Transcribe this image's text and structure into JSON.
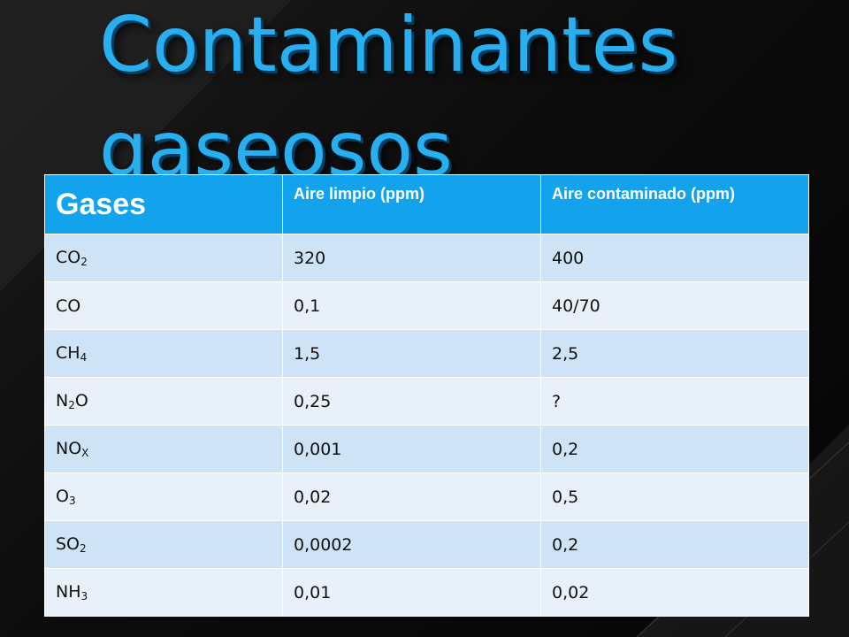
{
  "slide": {
    "title_line1": "Contaminantes",
    "title_line2": "gaseosos",
    "colors": {
      "title": "#29aff0",
      "header": "#13a2ec",
      "row_odd": "#cfe3f6",
      "row_even": "#e8f1fa"
    }
  },
  "table": {
    "headers": [
      "Gases",
      "Aire limpio (ppm)",
      "Aire contaminado (ppm)"
    ],
    "rows": [
      {
        "gas": "CO",
        "sub": "2",
        "tail": "",
        "clean": "320",
        "polluted": "400"
      },
      {
        "gas": "CO",
        "sub": "",
        "tail": "",
        "clean": "0,1",
        "polluted": "40/70"
      },
      {
        "gas": "CH",
        "sub": "4",
        "tail": "",
        "clean": "1,5",
        "polluted": "2,5"
      },
      {
        "gas": "N",
        "sub": "2",
        "tail": "O",
        "clean": "0,25",
        "polluted": "?"
      },
      {
        "gas": "NO",
        "sub": "X",
        "tail": "",
        "clean": "0,001",
        "polluted": "0,2"
      },
      {
        "gas": "O",
        "sub": "3",
        "tail": "",
        "clean": "0,02",
        "polluted": "0,5"
      },
      {
        "gas": "SO",
        "sub": "2",
        "tail": "",
        "clean": "0,0002",
        "polluted": "0,2"
      },
      {
        "gas": "NH",
        "sub": "3",
        "tail": "",
        "clean": "0,01",
        "polluted": "0,02"
      }
    ]
  }
}
